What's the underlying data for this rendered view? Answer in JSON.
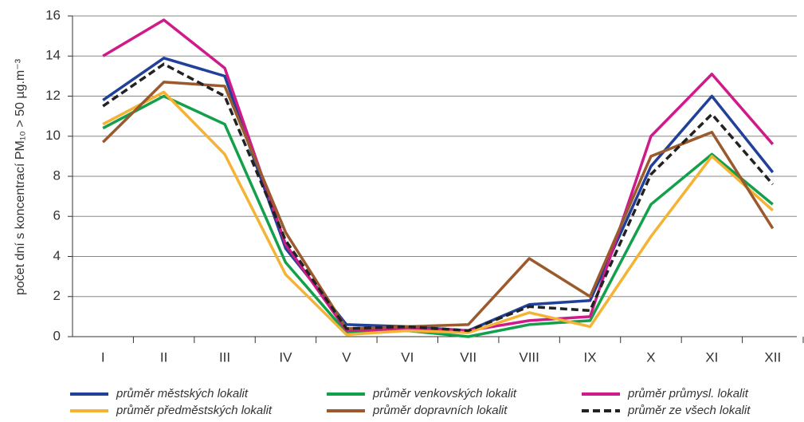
{
  "chart_data": {
    "type": "line",
    "ylabel": "počet dní s koncentrací PM₁₀ > 50 µg.m⁻³",
    "categories": [
      "I",
      "II",
      "III",
      "IV",
      "V",
      "VI",
      "VII",
      "VIII",
      "IX",
      "X",
      "XI",
      "XII"
    ],
    "series": [
      {
        "name": "průměr městských lokalit",
        "color": "#21409a",
        "style": "solid",
        "values": [
          11.8,
          13.9,
          13.0,
          4.4,
          0.6,
          0.5,
          0.3,
          1.6,
          1.8,
          8.5,
          12.0,
          8.2
        ]
      },
      {
        "name": "průměr venkovských lokalit",
        "color": "#13a04a",
        "style": "solid",
        "values": [
          10.4,
          12.0,
          10.6,
          3.7,
          0.2,
          0.3,
          0.0,
          0.6,
          0.8,
          6.6,
          9.1,
          6.6
        ]
      },
      {
        "name": "průměr průmysl. lokalit",
        "color": "#cf1b8a",
        "style": "solid",
        "values": [
          14.0,
          15.8,
          13.4,
          4.6,
          0.3,
          0.4,
          0.3,
          0.8,
          1.0,
          10.0,
          13.1,
          9.6
        ]
      },
      {
        "name": "průměr předměstských lokalit",
        "color": "#f5b335",
        "style": "solid",
        "values": [
          10.6,
          12.2,
          9.1,
          3.1,
          0.1,
          0.3,
          0.2,
          1.2,
          0.5,
          5.0,
          9.0,
          6.3
        ]
      },
      {
        "name": "průměr dopravních lokalit",
        "color": "#9b5a2d",
        "style": "solid",
        "values": [
          9.7,
          12.7,
          12.5,
          5.2,
          0.4,
          0.5,
          0.6,
          3.9,
          2.0,
          9.0,
          10.2,
          5.4
        ]
      },
      {
        "name": "průměr ze všech lokalit",
        "color": "#222222",
        "style": "dashed",
        "values": [
          11.5,
          13.6,
          12.0,
          4.8,
          0.4,
          0.5,
          0.3,
          1.5,
          1.3,
          8.1,
          11.1,
          7.6
        ]
      }
    ],
    "ylim": [
      0,
      16
    ],
    "yticks": [
      0,
      2,
      4,
      6,
      8,
      10,
      12,
      14,
      16
    ],
    "grid": true
  }
}
